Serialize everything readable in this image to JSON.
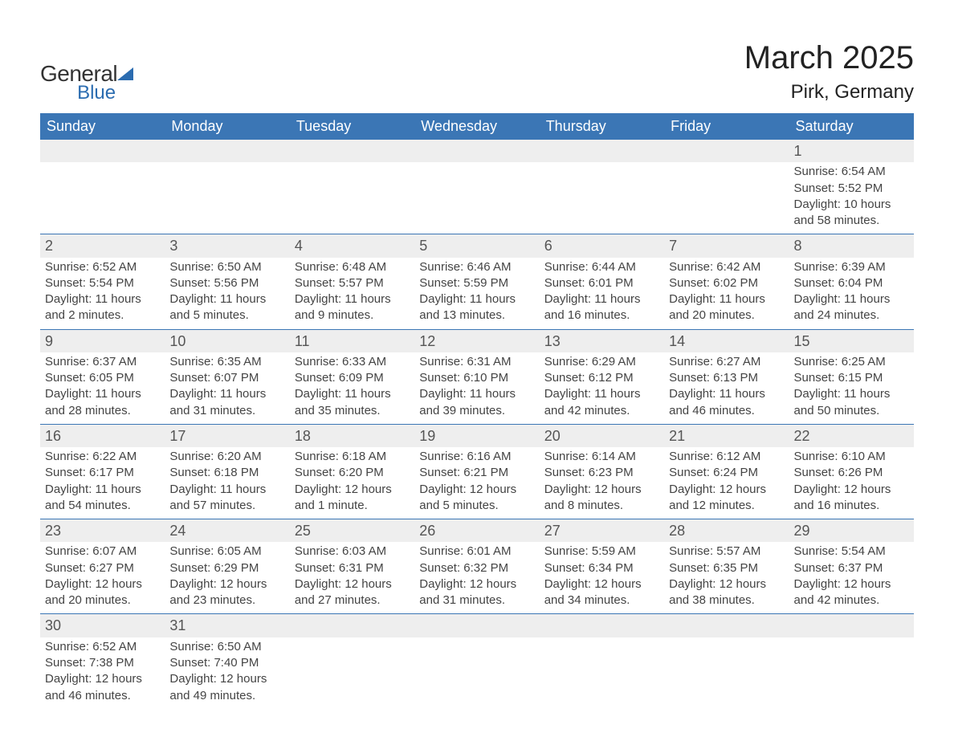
{
  "brand": {
    "word1": "General",
    "word2": "Blue",
    "accent_color": "#2b6cb0"
  },
  "title": "March 2025",
  "location": "Pirk, Germany",
  "colors": {
    "header_bg": "#3b76b5",
    "header_text": "#ffffff",
    "daynum_bg": "#eeeeee",
    "row_divider": "#3b76b5",
    "body_text": "#444444",
    "daynum_text": "#555555",
    "background": "#ffffff"
  },
  "typography": {
    "title_fontsize": 40,
    "location_fontsize": 24,
    "weekday_fontsize": 18,
    "daynum_fontsize": 18,
    "detail_fontsize": 15,
    "font_family": "Arial"
  },
  "weekdays": [
    "Sunday",
    "Monday",
    "Tuesday",
    "Wednesday",
    "Thursday",
    "Friday",
    "Saturday"
  ],
  "first_weekday_index": 6,
  "weeks": [
    [
      null,
      null,
      null,
      null,
      null,
      null,
      {
        "day": "1",
        "sunrise": "Sunrise: 6:54 AM",
        "sunset": "Sunset: 5:52 PM",
        "daylight": "Daylight: 10 hours and 58 minutes."
      }
    ],
    [
      {
        "day": "2",
        "sunrise": "Sunrise: 6:52 AM",
        "sunset": "Sunset: 5:54 PM",
        "daylight": "Daylight: 11 hours and 2 minutes."
      },
      {
        "day": "3",
        "sunrise": "Sunrise: 6:50 AM",
        "sunset": "Sunset: 5:56 PM",
        "daylight": "Daylight: 11 hours and 5 minutes."
      },
      {
        "day": "4",
        "sunrise": "Sunrise: 6:48 AM",
        "sunset": "Sunset: 5:57 PM",
        "daylight": "Daylight: 11 hours and 9 minutes."
      },
      {
        "day": "5",
        "sunrise": "Sunrise: 6:46 AM",
        "sunset": "Sunset: 5:59 PM",
        "daylight": "Daylight: 11 hours and 13 minutes."
      },
      {
        "day": "6",
        "sunrise": "Sunrise: 6:44 AM",
        "sunset": "Sunset: 6:01 PM",
        "daylight": "Daylight: 11 hours and 16 minutes."
      },
      {
        "day": "7",
        "sunrise": "Sunrise: 6:42 AM",
        "sunset": "Sunset: 6:02 PM",
        "daylight": "Daylight: 11 hours and 20 minutes."
      },
      {
        "day": "8",
        "sunrise": "Sunrise: 6:39 AM",
        "sunset": "Sunset: 6:04 PM",
        "daylight": "Daylight: 11 hours and 24 minutes."
      }
    ],
    [
      {
        "day": "9",
        "sunrise": "Sunrise: 6:37 AM",
        "sunset": "Sunset: 6:05 PM",
        "daylight": "Daylight: 11 hours and 28 minutes."
      },
      {
        "day": "10",
        "sunrise": "Sunrise: 6:35 AM",
        "sunset": "Sunset: 6:07 PM",
        "daylight": "Daylight: 11 hours and 31 minutes."
      },
      {
        "day": "11",
        "sunrise": "Sunrise: 6:33 AM",
        "sunset": "Sunset: 6:09 PM",
        "daylight": "Daylight: 11 hours and 35 minutes."
      },
      {
        "day": "12",
        "sunrise": "Sunrise: 6:31 AM",
        "sunset": "Sunset: 6:10 PM",
        "daylight": "Daylight: 11 hours and 39 minutes."
      },
      {
        "day": "13",
        "sunrise": "Sunrise: 6:29 AM",
        "sunset": "Sunset: 6:12 PM",
        "daylight": "Daylight: 11 hours and 42 minutes."
      },
      {
        "day": "14",
        "sunrise": "Sunrise: 6:27 AM",
        "sunset": "Sunset: 6:13 PM",
        "daylight": "Daylight: 11 hours and 46 minutes."
      },
      {
        "day": "15",
        "sunrise": "Sunrise: 6:25 AM",
        "sunset": "Sunset: 6:15 PM",
        "daylight": "Daylight: 11 hours and 50 minutes."
      }
    ],
    [
      {
        "day": "16",
        "sunrise": "Sunrise: 6:22 AM",
        "sunset": "Sunset: 6:17 PM",
        "daylight": "Daylight: 11 hours and 54 minutes."
      },
      {
        "day": "17",
        "sunrise": "Sunrise: 6:20 AM",
        "sunset": "Sunset: 6:18 PM",
        "daylight": "Daylight: 11 hours and 57 minutes."
      },
      {
        "day": "18",
        "sunrise": "Sunrise: 6:18 AM",
        "sunset": "Sunset: 6:20 PM",
        "daylight": "Daylight: 12 hours and 1 minute."
      },
      {
        "day": "19",
        "sunrise": "Sunrise: 6:16 AM",
        "sunset": "Sunset: 6:21 PM",
        "daylight": "Daylight: 12 hours and 5 minutes."
      },
      {
        "day": "20",
        "sunrise": "Sunrise: 6:14 AM",
        "sunset": "Sunset: 6:23 PM",
        "daylight": "Daylight: 12 hours and 8 minutes."
      },
      {
        "day": "21",
        "sunrise": "Sunrise: 6:12 AM",
        "sunset": "Sunset: 6:24 PM",
        "daylight": "Daylight: 12 hours and 12 minutes."
      },
      {
        "day": "22",
        "sunrise": "Sunrise: 6:10 AM",
        "sunset": "Sunset: 6:26 PM",
        "daylight": "Daylight: 12 hours and 16 minutes."
      }
    ],
    [
      {
        "day": "23",
        "sunrise": "Sunrise: 6:07 AM",
        "sunset": "Sunset: 6:27 PM",
        "daylight": "Daylight: 12 hours and 20 minutes."
      },
      {
        "day": "24",
        "sunrise": "Sunrise: 6:05 AM",
        "sunset": "Sunset: 6:29 PM",
        "daylight": "Daylight: 12 hours and 23 minutes."
      },
      {
        "day": "25",
        "sunrise": "Sunrise: 6:03 AM",
        "sunset": "Sunset: 6:31 PM",
        "daylight": "Daylight: 12 hours and 27 minutes."
      },
      {
        "day": "26",
        "sunrise": "Sunrise: 6:01 AM",
        "sunset": "Sunset: 6:32 PM",
        "daylight": "Daylight: 12 hours and 31 minutes."
      },
      {
        "day": "27",
        "sunrise": "Sunrise: 5:59 AM",
        "sunset": "Sunset: 6:34 PM",
        "daylight": "Daylight: 12 hours and 34 minutes."
      },
      {
        "day": "28",
        "sunrise": "Sunrise: 5:57 AM",
        "sunset": "Sunset: 6:35 PM",
        "daylight": "Daylight: 12 hours and 38 minutes."
      },
      {
        "day": "29",
        "sunrise": "Sunrise: 5:54 AM",
        "sunset": "Sunset: 6:37 PM",
        "daylight": "Daylight: 12 hours and 42 minutes."
      }
    ],
    [
      {
        "day": "30",
        "sunrise": "Sunrise: 6:52 AM",
        "sunset": "Sunset: 7:38 PM",
        "daylight": "Daylight: 12 hours and 46 minutes."
      },
      {
        "day": "31",
        "sunrise": "Sunrise: 6:50 AM",
        "sunset": "Sunset: 7:40 PM",
        "daylight": "Daylight: 12 hours and 49 minutes."
      },
      null,
      null,
      null,
      null,
      null
    ]
  ]
}
